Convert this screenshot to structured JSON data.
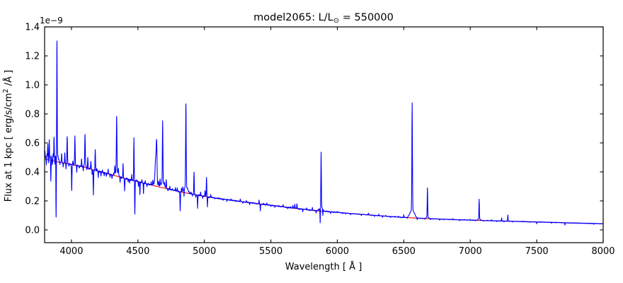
{
  "page": {
    "background": "#ffffff"
  },
  "chart_data": {
    "type": "line",
    "title": "model2065: L/L⊙ = 550000",
    "title_parts": {
      "prefix": "model2065: L/L",
      "sub": "⊙",
      "suffix": " = 550000"
    },
    "xlabel": "Wavelength [ Å ]",
    "ylabel": "Flux at 1 kpc [ erg/s/cm² /Å ]",
    "ylabel_parts": {
      "prefix": "Flux at 1 kpc [ erg/s/cm",
      "sup": "2",
      "suffix": " /Å ]"
    },
    "y_offset_text": "1e−9",
    "xlim": [
      3798,
      8000
    ],
    "ylim_1e9": [
      -0.088,
      1.4
    ],
    "x_ticks": [
      4000,
      4500,
      5000,
      5500,
      6000,
      6500,
      7000,
      7500,
      8000
    ],
    "y_ticks_1e9": [
      0.0,
      0.2,
      0.4,
      0.6,
      0.8,
      1.0,
      1.2,
      1.4
    ],
    "grid": false,
    "legend": null,
    "flux_unit_scale": "1e-9 erg/s/cm2/A",
    "series": [
      {
        "name": "model spectrum",
        "color": "#0000ff",
        "style": "solid"
      },
      {
        "name": "continuum",
        "color": "#ff0000",
        "style": "solid"
      }
    ],
    "continuum_1e9": [
      [
        3798,
        0.49
      ],
      [
        3850,
        0.479
      ],
      [
        3900,
        0.468
      ],
      [
        3950,
        0.46
      ],
      [
        4000,
        0.452
      ],
      [
        4080,
        0.436
      ],
      [
        4160,
        0.416
      ],
      [
        4240,
        0.396
      ],
      [
        4320,
        0.376
      ],
      [
        4400,
        0.355
      ],
      [
        4500,
        0.333
      ],
      [
        4590,
        0.312
      ],
      [
        4675,
        0.293
      ],
      [
        4760,
        0.275
      ],
      [
        4850,
        0.257
      ],
      [
        4940,
        0.241
      ],
      [
        5025,
        0.228
      ],
      [
        5110,
        0.216
      ],
      [
        5200,
        0.205
      ],
      [
        5300,
        0.193
      ],
      [
        5400,
        0.181
      ],
      [
        5500,
        0.17
      ],
      [
        5600,
        0.158
      ],
      [
        5720,
        0.145
      ],
      [
        5860,
        0.131
      ],
      [
        6000,
        0.121
      ],
      [
        6100,
        0.113
      ],
      [
        6200,
        0.106
      ],
      [
        6300,
        0.099
      ],
      [
        6400,
        0.092
      ],
      [
        6500,
        0.086
      ],
      [
        6600,
        0.081
      ],
      [
        6700,
        0.077
      ],
      [
        6800,
        0.0735
      ],
      [
        6900,
        0.0705
      ],
      [
        7000,
        0.0675
      ],
      [
        7100,
        0.0648
      ],
      [
        7200,
        0.0622
      ],
      [
        7300,
        0.0597
      ],
      [
        7400,
        0.0572
      ],
      [
        7500,
        0.0548
      ],
      [
        7600,
        0.0522
      ],
      [
        7700,
        0.0497
      ],
      [
        7800,
        0.0472
      ],
      [
        7900,
        0.0448
      ],
      [
        8000,
        0.0425
      ]
    ],
    "emission_absorption_lines_1e9": [
      [
        3800,
        0.545,
        1.5
      ],
      [
        3806,
        0.505,
        1.4
      ],
      [
        3811,
        0.455,
        1.3
      ],
      [
        3816,
        0.525,
        1.5
      ],
      [
        3822,
        0.6,
        1.6
      ],
      [
        3828,
        0.46,
        1.3
      ],
      [
        3833,
        0.625,
        1.7
      ],
      [
        3840,
        0.51,
        1.4
      ],
      [
        3845,
        0.345,
        1.6
      ],
      [
        3851,
        0.5,
        1.3
      ],
      [
        3857,
        0.455,
        1.3
      ],
      [
        3863,
        0.52,
        1.4
      ],
      [
        3869,
        0.63,
        1.7
      ],
      [
        3875,
        0.46,
        1.4
      ],
      [
        3881,
        0.51,
        1.3
      ],
      [
        3884.5,
        0.085,
        1.4
      ],
      [
        3891,
        1.3,
        1.7
      ],
      [
        3898,
        0.51,
        1.6
      ],
      [
        3913,
        0.455,
        1.3
      ],
      [
        3926,
        0.525,
        1.7
      ],
      [
        3938,
        0.435,
        1.4
      ],
      [
        3950,
        0.53,
        1.7
      ],
      [
        3959,
        0.42,
        1.3
      ],
      [
        3968,
        0.645,
        1.9
      ],
      [
        3981,
        0.435,
        1.4
      ],
      [
        4002,
        0.27,
        1.7
      ],
      [
        4011,
        0.475,
        1.6
      ],
      [
        4026,
        0.645,
        1.9
      ],
      [
        4040,
        0.4,
        1.4
      ],
      [
        4059,
        0.43,
        1.4
      ],
      [
        4076,
        0.49,
        1.6
      ],
      [
        4089,
        0.405,
        1.4
      ],
      [
        4102,
        0.655,
        2.0
      ],
      [
        4116,
        0.42,
        1.3
      ],
      [
        4123,
        0.5,
        1.6
      ],
      [
        4146,
        0.47,
        1.7
      ],
      [
        4156,
        0.38,
        1.3
      ],
      [
        4165,
        0.245,
        1.6
      ],
      [
        4179,
        0.55,
        1.7
      ],
      [
        4191,
        0.425,
        1.6
      ],
      [
        4202,
        0.365,
        1.4
      ],
      [
        4222,
        0.37,
        1.3
      ],
      [
        4233,
        0.41,
        1.6
      ],
      [
        4246,
        0.375,
        1.3
      ],
      [
        4262,
        0.37,
        1.3
      ],
      [
        4276,
        0.42,
        1.5
      ],
      [
        4290,
        0.365,
        1.3
      ],
      [
        4305,
        0.355,
        1.4
      ],
      [
        4317,
        0.39,
        1.3
      ],
      [
        4326,
        0.44,
        1.5
      ],
      [
        4340,
        0.78,
        2.1
      ],
      [
        4353,
        0.42,
        1.6
      ],
      [
        4366,
        0.33,
        1.4
      ],
      [
        4379,
        0.36,
        1.3
      ],
      [
        4388,
        0.455,
        1.7
      ],
      [
        4400,
        0.27,
        1.6
      ],
      [
        4415,
        0.36,
        1.4
      ],
      [
        4427,
        0.33,
        1.3
      ],
      [
        4438,
        0.325,
        1.3
      ],
      [
        4453,
        0.38,
        1.5
      ],
      [
        4470,
        0.635,
        1.8
      ],
      [
        4477,
        0.105,
        1.5
      ],
      [
        4490,
        0.345,
        1.5
      ],
      [
        4504,
        0.3,
        1.3
      ],
      [
        4515,
        0.245,
        1.5
      ],
      [
        4530,
        0.345,
        1.5
      ],
      [
        4542,
        0.25,
        1.5
      ],
      [
        4555,
        0.34,
        1.4
      ],
      [
        4568,
        0.3,
        1.3
      ],
      [
        4580,
        0.32,
        1.3
      ],
      [
        4600,
        0.335,
        1.5
      ],
      [
        4613,
        0.345,
        1.6
      ],
      [
        4634,
        0.5,
        4.5
      ],
      [
        4641,
        0.565,
        2.8
      ],
      [
        4655,
        0.335,
        2.0
      ],
      [
        4667,
        0.35,
        1.8
      ],
      [
        4686,
        0.755,
        2.0
      ],
      [
        4700,
        0.325,
        1.6
      ],
      [
        4713,
        0.345,
        1.8
      ],
      [
        4726,
        0.27,
        1.4
      ],
      [
        4740,
        0.3,
        1.4
      ],
      [
        4760,
        0.285,
        1.3
      ],
      [
        4782,
        0.29,
        1.3
      ],
      [
        4796,
        0.29,
        1.4
      ],
      [
        4805,
        0.26,
        1.3
      ],
      [
        4818,
        0.13,
        1.6
      ],
      [
        4828,
        0.29,
        1.4
      ],
      [
        4838,
        0.3,
        1.5
      ],
      [
        4847,
        0.235,
        1.4
      ],
      [
        4861,
        0.87,
        2.1
      ],
      [
        4872,
        0.29,
        1.5
      ],
      [
        4887,
        0.26,
        1.3
      ],
      [
        4900,
        0.26,
        1.3
      ],
      [
        4910,
        0.235,
        1.3
      ],
      [
        4922,
        0.4,
        1.7
      ],
      [
        4935,
        0.225,
        1.4
      ],
      [
        4949,
        0.15,
        1.5
      ],
      [
        4961,
        0.245,
        1.3
      ],
      [
        4972,
        0.26,
        1.4
      ],
      [
        4988,
        0.22,
        1.3
      ],
      [
        5005,
        0.27,
        1.5
      ],
      [
        5016,
        0.36,
        1.7
      ],
      [
        5023,
        0.16,
        1.5
      ],
      [
        5035,
        0.225,
        1.3
      ],
      [
        5048,
        0.245,
        1.5
      ],
      [
        5080,
        0.215,
        1.3
      ],
      [
        5107,
        0.222,
        1.3
      ],
      [
        5140,
        0.203,
        1.2
      ],
      [
        5170,
        0.196,
        1.2
      ],
      [
        5200,
        0.212,
        1.3
      ],
      [
        5235,
        0.196,
        1.2
      ],
      [
        5270,
        0.212,
        1.5
      ],
      [
        5290,
        0.186,
        1.2
      ],
      [
        5316,
        0.201,
        1.4
      ],
      [
        5340,
        0.176,
        1.2
      ],
      [
        5370,
        0.19,
        1.2
      ],
      [
        5411,
        0.205,
        1.5
      ],
      [
        5421,
        0.132,
        1.4
      ],
      [
        5445,
        0.183,
        1.2
      ],
      [
        5470,
        0.186,
        1.3
      ],
      [
        5500,
        0.163,
        1.2
      ],
      [
        5530,
        0.156,
        1.2
      ],
      [
        5560,
        0.167,
        1.2
      ],
      [
        5592,
        0.175,
        1.4
      ],
      [
        5625,
        0.148,
        1.2
      ],
      [
        5650,
        0.158,
        1.2
      ],
      [
        5666,
        0.168,
        1.4
      ],
      [
        5680,
        0.176,
        1.6
      ],
      [
        5696,
        0.181,
        1.5
      ],
      [
        5715,
        0.139,
        1.2
      ],
      [
        5740,
        0.127,
        1.2
      ],
      [
        5770,
        0.151,
        1.2
      ],
      [
        5790,
        0.134,
        1.2
      ],
      [
        5812,
        0.155,
        1.4
      ],
      [
        5840,
        0.117,
        1.2
      ],
      [
        5856,
        0.138,
        1.2
      ],
      [
        5871,
        0.05,
        1.4
      ],
      [
        5878,
        0.535,
        1.8
      ],
      [
        5891,
        0.102,
        1.3
      ],
      [
        5920,
        0.131,
        1.2
      ],
      [
        5950,
        0.113,
        1.1
      ],
      [
        5980,
        0.124,
        1.1
      ],
      [
        6005,
        0.126,
        1.2
      ],
      [
        6040,
        0.11,
        1.1
      ],
      [
        6063,
        0.112,
        1.2
      ],
      [
        6100,
        0.104,
        1.1
      ],
      [
        6150,
        0.109,
        1.2
      ],
      [
        6180,
        0.099,
        1.1
      ],
      [
        6234,
        0.116,
        1.4
      ],
      [
        6260,
        0.098,
        1.1
      ],
      [
        6280,
        0.093,
        1.1
      ],
      [
        6311,
        0.108,
        1.3
      ],
      [
        6340,
        0.088,
        1.1
      ],
      [
        6364,
        0.1,
        1.3
      ],
      [
        6400,
        0.086,
        1.1
      ],
      [
        6433,
        0.094,
        1.1
      ],
      [
        6460,
        0.095,
        1.1
      ],
      [
        6480,
        0.084,
        1.1
      ],
      [
        6500,
        0.104,
        1.4
      ],
      [
        6527,
        0.079,
        1.1
      ],
      [
        6548,
        0.118,
        1.4
      ],
      [
        6563,
        0.875,
        2.1
      ],
      [
        6583,
        0.112,
        1.5
      ],
      [
        6601,
        0.071,
        1.2
      ],
      [
        6620,
        0.08,
        1.1
      ],
      [
        6640,
        0.082,
        1.1
      ],
      [
        6660,
        0.073,
        1.1
      ],
      [
        6678,
        0.29,
        1.7
      ],
      [
        6700,
        0.071,
        1.1
      ],
      [
        6720,
        0.077,
        1.1
      ],
      [
        6740,
        0.078,
        1.1
      ],
      [
        6770,
        0.068,
        1.1
      ],
      [
        6800,
        0.0685,
        1.1
      ],
      [
        6830,
        0.075,
        1.1
      ],
      [
        6870,
        0.0775,
        1.2
      ],
      [
        6920,
        0.064,
        1.1
      ],
      [
        6960,
        0.071,
        1.1
      ],
      [
        7000,
        0.0715,
        1.2
      ],
      [
        7038,
        0.062,
        1.1
      ],
      [
        7067,
        0.21,
        1.7
      ],
      [
        7100,
        0.06,
        1.1
      ],
      [
        7130,
        0.066,
        1.1
      ],
      [
        7161,
        0.0715,
        1.3
      ],
      [
        7200,
        0.058,
        1.1
      ],
      [
        7236,
        0.0845,
        1.4
      ],
      [
        7254,
        0.055,
        1.1
      ],
      [
        7283,
        0.102,
        1.5
      ],
      [
        7320,
        0.0535,
        1.1
      ],
      [
        7360,
        0.059,
        1.1
      ],
      [
        7400,
        0.0595,
        1.2
      ],
      [
        7450,
        0.052,
        1.1
      ],
      [
        7500,
        0.0425,
        1.2
      ],
      [
        7530,
        0.0565,
        1.1
      ],
      [
        7560,
        0.052,
        1.1
      ],
      [
        7610,
        0.0445,
        1.1
      ],
      [
        7650,
        0.05,
        1.1
      ],
      [
        7680,
        0.0495,
        1.1
      ],
      [
        7712,
        0.0335,
        1.2
      ],
      [
        7750,
        0.046,
        1.1
      ],
      [
        7810,
        0.0425,
        1.1
      ],
      [
        7870,
        0.0445,
        1.1
      ],
      [
        7930,
        0.038,
        1.1
      ],
      [
        7970,
        0.042,
        1.1
      ]
    ],
    "broad_wings_1e9": [
      [
        3891,
        10,
        0.045
      ],
      [
        4102,
        8,
        0.02
      ],
      [
        4340,
        11,
        0.03
      ],
      [
        4634,
        14,
        0.02
      ],
      [
        4686,
        11,
        0.035
      ],
      [
        4861,
        13,
        0.045
      ],
      [
        5878,
        11,
        0.03
      ],
      [
        6563,
        16,
        0.055
      ],
      [
        6678,
        8,
        0.012
      ],
      [
        7067,
        8,
        0.01
      ]
    ]
  }
}
